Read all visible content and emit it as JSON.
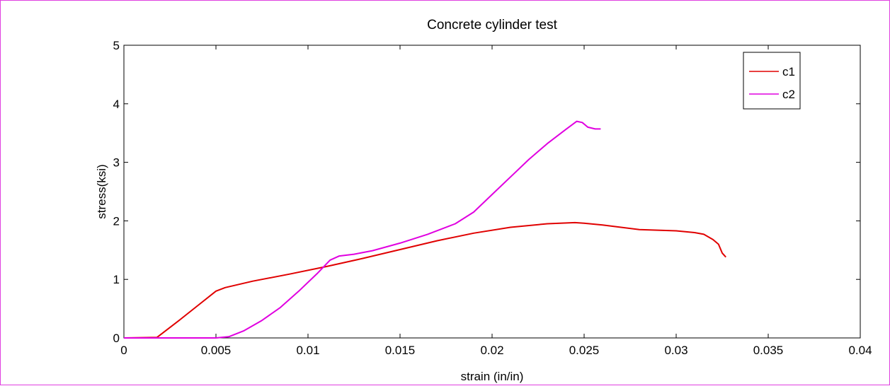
{
  "chart_data": {
    "type": "line",
    "title": "Concrete cylinder test",
    "xlabel": "strain (in/in)",
    "ylabel": "stress(ksi)",
    "xlim": [
      0,
      0.04
    ],
    "ylim": [
      0,
      5
    ],
    "xticks": [
      0,
      0.005,
      0.01,
      0.015,
      0.02,
      0.025,
      0.03,
      0.035,
      0.04
    ],
    "xtick_labels": [
      "0",
      "0.005",
      "0.01",
      "0.015",
      "0.02",
      "0.025",
      "0.03",
      "0.035",
      "0.04"
    ],
    "yticks": [
      0,
      1,
      2,
      3,
      4,
      5
    ],
    "ytick_labels": [
      "0",
      "1",
      "2",
      "3",
      "4",
      "5"
    ],
    "grid": false,
    "legend_position": "top-right",
    "series": [
      {
        "name": "c1",
        "color": "#e00000",
        "x": [
          0,
          0.0018,
          0.003,
          0.004,
          0.005,
          0.0055,
          0.007,
          0.009,
          0.011,
          0.013,
          0.015,
          0.017,
          0.019,
          0.021,
          0.023,
          0.0245,
          0.025,
          0.026,
          0.027,
          0.028,
          0.029,
          0.03,
          0.031,
          0.0315,
          0.032,
          0.0323,
          0.0325,
          0.0327
        ],
        "y": [
          0,
          0.01,
          0.3,
          0.55,
          0.8,
          0.86,
          0.97,
          1.09,
          1.22,
          1.36,
          1.51,
          1.66,
          1.79,
          1.89,
          1.95,
          1.97,
          1.96,
          1.93,
          1.89,
          1.85,
          1.84,
          1.83,
          1.8,
          1.77,
          1.68,
          1.6,
          1.45,
          1.38
        ]
      },
      {
        "name": "c2",
        "color": "#e000e0",
        "x": [
          0,
          0.005,
          0.0057,
          0.0065,
          0.0075,
          0.0085,
          0.0095,
          0.0105,
          0.0112,
          0.0117,
          0.0125,
          0.0135,
          0.015,
          0.0165,
          0.018,
          0.019,
          0.02,
          0.021,
          0.022,
          0.023,
          0.024,
          0.0246,
          0.0249,
          0.0252,
          0.0256,
          0.0259
        ],
        "y": [
          0,
          0,
          0.02,
          0.12,
          0.3,
          0.52,
          0.8,
          1.1,
          1.33,
          1.4,
          1.43,
          1.49,
          1.62,
          1.77,
          1.95,
          2.15,
          2.45,
          2.75,
          3.05,
          3.32,
          3.56,
          3.7,
          3.68,
          3.6,
          3.57,
          3.57
        ]
      }
    ]
  }
}
